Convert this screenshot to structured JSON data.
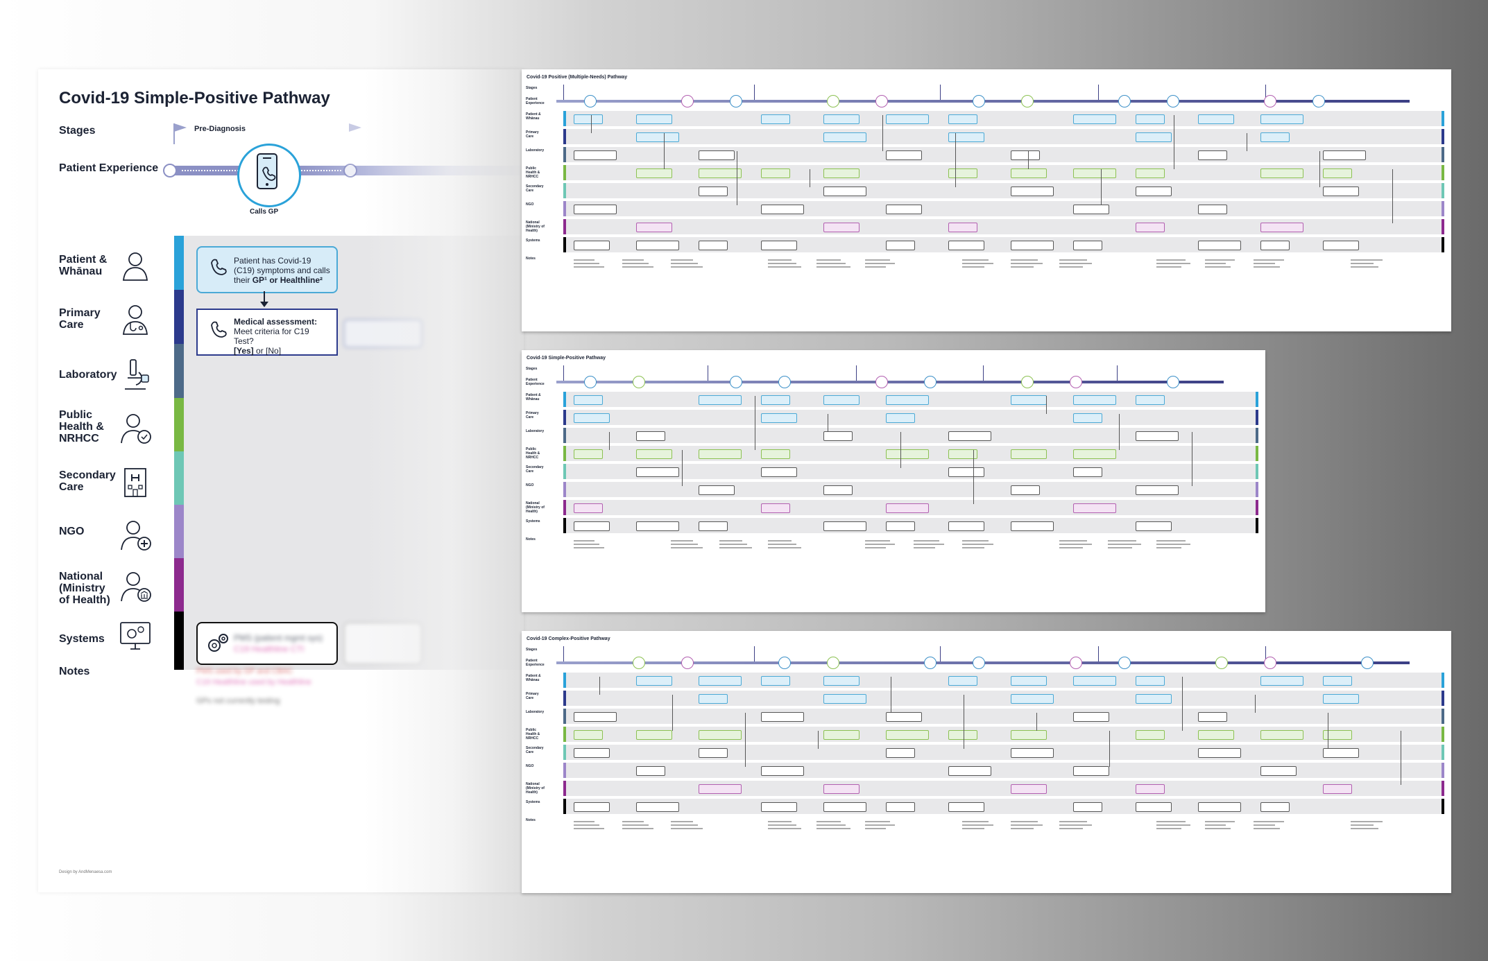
{
  "poster": {
    "title": "Covid-19 Simple-Positive Pathway",
    "stages_label": "Stages",
    "stage_pre": "Pre-Diagnosis",
    "patient_experience_label": "Patient Experience",
    "calls_gp": "Calls GP",
    "lanes": [
      {
        "label": "Patient & Whānau",
        "color": "#2aa2d9"
      },
      {
        "label": "Primary Care",
        "color": "#2c3a8c"
      },
      {
        "label": "Laboratory",
        "color": "#4d6a88"
      },
      {
        "label": "Public Health & NRHCC",
        "color": "#79b843"
      },
      {
        "label": "Secondary Care",
        "color": "#6ec7b5"
      },
      {
        "label": "NGO",
        "color": "#9c86c9"
      },
      {
        "label": "National (Ministry of Health)",
        "color": "#8d2a8e"
      },
      {
        "label": "Systems",
        "color": "#000000"
      }
    ],
    "notes_label": "Notes",
    "card1_text_a": "Patient has Covid-19 (C19) symptoms and calls their ",
    "card1_text_b": "GP¹ or Healthline²",
    "card2_title": "Medical assessment:",
    "card2_text": "Meet criteria for C19 Test?",
    "card2_yes": "[Yes]",
    "card2_or": "or [No]",
    "systems_blur": "PMS (patient mgmt sys)",
    "systems_blur2": "C19 Healthline CTI",
    "notes_blur1": "PMS used by GP and CBAC",
    "notes_blur2": "C19 Healthline used by Healthline",
    "notes_blur3": "GPs not currently testing",
    "credit": "Design by AndMenaesa.com"
  },
  "thumbs": [
    {
      "title": "Covid-19 Positive (Multiple-Needs) Pathway"
    },
    {
      "title": "Covid-19 Simple-Positive Pathway"
    },
    {
      "title": "Covid-19 Complex-Positive Pathway"
    }
  ],
  "thumb_rows": [
    "Stages",
    "Patient Experience",
    "Patient & Whānau",
    "Primary Care",
    "Laboratory",
    "Public Health & NRHCC",
    "Secondary Care",
    "NGO",
    "National (Ministry of Health)",
    "Systems",
    "Notes"
  ]
}
